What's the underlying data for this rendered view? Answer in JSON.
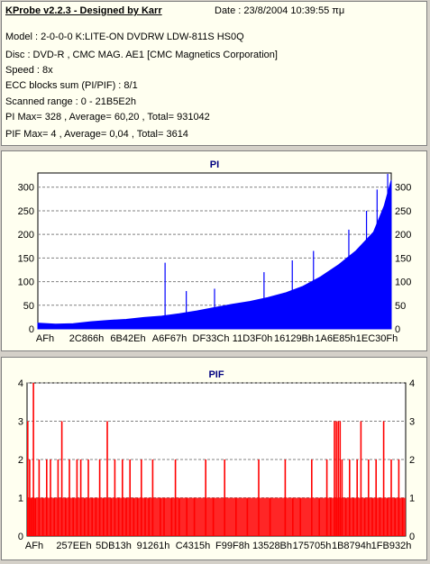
{
  "header": {
    "title": "KProbe v2.2.3 - Designed by Karr",
    "date": "Date : 23/8/2004 10:39:55 πμ",
    "model": "Model : 2-0-0-0 K:LITE-ON DVDRW LDW-811S   HS0Q",
    "disc": "Disc : DVD-R , CMC MAG. AE1 [CMC Magnetics Corporation]",
    "speed": "Speed : 8x",
    "ecc": "ECC blocks sum (PI/PIF) : 8/1",
    "range": "Scanned range : 0 - 21B5E2h",
    "pi_stats": "PI Max= 328 , Average= 60,20 , Total= 931042",
    "pif_stats": "PIF Max= 4 , Average= 0,04 , Total= 3614"
  },
  "chart_data": [
    {
      "type": "area",
      "title": "PI",
      "color": "#0000ff",
      "ylim": [
        0,
        330
      ],
      "yticks": [
        "0",
        "50",
        "100",
        "150",
        "200",
        "250",
        "300"
      ],
      "xticks": [
        "AFh",
        "2C866h",
        "6B42Eh",
        "A6F67h",
        "DF33Ch",
        "11D3F0h",
        "16129Bh",
        "1A6E85h",
        "1EC30Fh"
      ],
      "x": [
        0.0,
        0.05,
        0.1,
        0.15,
        0.2,
        0.25,
        0.3,
        0.35,
        0.4,
        0.45,
        0.5,
        0.55,
        0.6,
        0.65,
        0.7,
        0.75,
        0.8,
        0.85,
        0.9,
        0.95,
        0.98,
        1.0
      ],
      "values": [
        12,
        10,
        11,
        15,
        18,
        20,
        24,
        27,
        32,
        38,
        45,
        52,
        58,
        66,
        76,
        90,
        110,
        135,
        165,
        205,
        260,
        315
      ],
      "spikes": [
        {
          "x": 0.36,
          "value": 140
        },
        {
          "x": 0.42,
          "value": 80
        },
        {
          "x": 0.5,
          "value": 85
        },
        {
          "x": 0.64,
          "value": 120
        },
        {
          "x": 0.72,
          "value": 145
        },
        {
          "x": 0.78,
          "value": 165
        },
        {
          "x": 0.88,
          "value": 210
        },
        {
          "x": 0.93,
          "value": 250
        },
        {
          "x": 0.96,
          "value": 295
        },
        {
          "x": 0.99,
          "value": 328
        }
      ]
    },
    {
      "type": "bar",
      "title": "PIF",
      "color": "#ff0000",
      "ylim": [
        0,
        4
      ],
      "yticks": [
        "0",
        "1",
        "2",
        "3",
        "4"
      ],
      "xticks": [
        "AFh",
        "257EEh",
        "5DB13h",
        "91261h",
        "C4315h",
        "F99F8h",
        "13528Bh",
        "175705h",
        "1B8794h",
        "1FB932h"
      ],
      "bars": [
        {
          "x": 0.0,
          "v": 3
        },
        {
          "x": 0.005,
          "v": 2
        },
        {
          "x": 0.01,
          "v": 1
        },
        {
          "x": 0.015,
          "v": 4
        },
        {
          "x": 0.02,
          "v": 1
        },
        {
          "x": 0.03,
          "v": 2
        },
        {
          "x": 0.04,
          "v": 1
        },
        {
          "x": 0.05,
          "v": 2
        },
        {
          "x": 0.06,
          "v": 2
        },
        {
          "x": 0.07,
          "v": 1
        },
        {
          "x": 0.08,
          "v": 2
        },
        {
          "x": 0.09,
          "v": 3
        },
        {
          "x": 0.1,
          "v": 1
        },
        {
          "x": 0.11,
          "v": 2
        },
        {
          "x": 0.12,
          "v": 1
        },
        {
          "x": 0.13,
          "v": 2
        },
        {
          "x": 0.14,
          "v": 2
        },
        {
          "x": 0.15,
          "v": 1
        },
        {
          "x": 0.16,
          "v": 2
        },
        {
          "x": 0.17,
          "v": 1
        },
        {
          "x": 0.18,
          "v": 1
        },
        {
          "x": 0.19,
          "v": 2
        },
        {
          "x": 0.2,
          "v": 1
        },
        {
          "x": 0.21,
          "v": 3
        },
        {
          "x": 0.22,
          "v": 1
        },
        {
          "x": 0.23,
          "v": 2
        },
        {
          "x": 0.24,
          "v": 1
        },
        {
          "x": 0.25,
          "v": 2
        },
        {
          "x": 0.26,
          "v": 1
        },
        {
          "x": 0.27,
          "v": 2
        },
        {
          "x": 0.28,
          "v": 1
        },
        {
          "x": 0.29,
          "v": 1
        },
        {
          "x": 0.3,
          "v": 2
        },
        {
          "x": 0.31,
          "v": 1
        },
        {
          "x": 0.32,
          "v": 1
        },
        {
          "x": 0.33,
          "v": 2
        },
        {
          "x": 0.35,
          "v": 1
        },
        {
          "x": 0.36,
          "v": 1
        },
        {
          "x": 0.38,
          "v": 1
        },
        {
          "x": 0.39,
          "v": 2
        },
        {
          "x": 0.4,
          "v": 1
        },
        {
          "x": 0.42,
          "v": 1
        },
        {
          "x": 0.44,
          "v": 1
        },
        {
          "x": 0.47,
          "v": 2
        },
        {
          "x": 0.49,
          "v": 1
        },
        {
          "x": 0.52,
          "v": 2
        },
        {
          "x": 0.55,
          "v": 1
        },
        {
          "x": 0.58,
          "v": 1
        },
        {
          "x": 0.61,
          "v": 2
        },
        {
          "x": 0.64,
          "v": 1
        },
        {
          "x": 0.68,
          "v": 2
        },
        {
          "x": 0.7,
          "v": 1
        },
        {
          "x": 0.72,
          "v": 1
        },
        {
          "x": 0.75,
          "v": 2
        },
        {
          "x": 0.77,
          "v": 1
        },
        {
          "x": 0.79,
          "v": 2
        },
        {
          "x": 0.8,
          "v": 1
        },
        {
          "x": 0.81,
          "v": 3
        },
        {
          "x": 0.815,
          "v": 3
        },
        {
          "x": 0.82,
          "v": 3
        },
        {
          "x": 0.825,
          "v": 3
        },
        {
          "x": 0.83,
          "v": 2
        },
        {
          "x": 0.84,
          "v": 1
        },
        {
          "x": 0.85,
          "v": 2
        },
        {
          "x": 0.86,
          "v": 1
        },
        {
          "x": 0.87,
          "v": 2
        },
        {
          "x": 0.88,
          "v": 3
        },
        {
          "x": 0.89,
          "v": 1
        },
        {
          "x": 0.9,
          "v": 2
        },
        {
          "x": 0.91,
          "v": 1
        },
        {
          "x": 0.92,
          "v": 2
        },
        {
          "x": 0.93,
          "v": 1
        },
        {
          "x": 0.94,
          "v": 3
        },
        {
          "x": 0.95,
          "v": 1
        },
        {
          "x": 0.96,
          "v": 2
        },
        {
          "x": 0.97,
          "v": 1
        },
        {
          "x": 0.98,
          "v": 2
        },
        {
          "x": 0.99,
          "v": 1
        }
      ],
      "baseline_value": 1
    }
  ]
}
